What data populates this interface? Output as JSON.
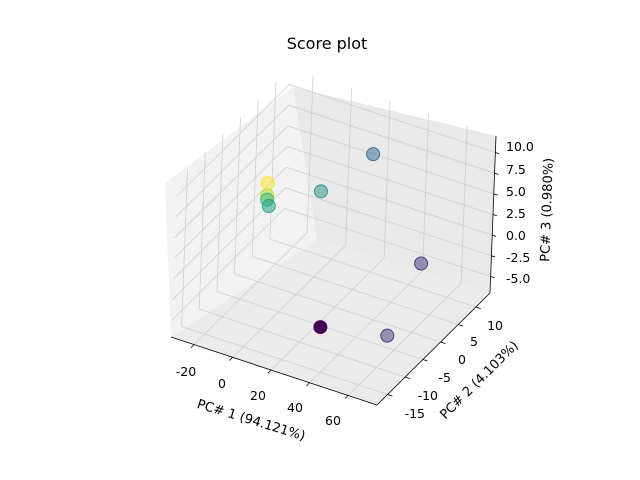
{
  "chart_data": {
    "type": "scatter",
    "projection": "3d",
    "title": "Score plot",
    "xlabel": "PC# 1 (94.121%)",
    "ylabel": "PC# 2 (4.103%)",
    "zlabel": "PC# 3 (0.980%)",
    "xlim": [
      -32,
      75
    ],
    "ylim": [
      -18,
      14
    ],
    "zlim": [
      -7,
      12
    ],
    "xticks": [
      "-20",
      "0",
      "20",
      "40",
      "60"
    ],
    "yticks": [
      "-15",
      "-10",
      "-5",
      "0",
      "5",
      "10"
    ],
    "zticks": [
      "-5.0",
      "-2.5",
      "0.0",
      "2.5",
      "5.0",
      "7.5",
      "10.0"
    ],
    "grid": true,
    "colormap": "viridis",
    "points": [
      {
        "x": 28,
        "y": 5,
        "z": 10.0,
        "color": "#31688e"
      },
      {
        "x": 60,
        "y": 2,
        "z": 0.5,
        "color": "#46327e"
      },
      {
        "x": 58,
        "y": -6,
        "z": -5.0,
        "color": "#46327e"
      },
      {
        "x": 27,
        "y": -8,
        "z": -5.5,
        "color": "#440154"
      },
      {
        "x": 2,
        "y": 5,
        "z": 3.5,
        "color": "#21918c"
      },
      {
        "x": -22,
        "y": 3,
        "z": 3.5,
        "color": "#fde725"
      },
      {
        "x": -22,
        "y": 3,
        "z": 2.0,
        "color": "#b5de2b"
      },
      {
        "x": -22,
        "y": 3,
        "z": 1.5,
        "color": "#35b779"
      },
      {
        "x": -21,
        "y": 3,
        "z": 0.8,
        "color": "#1f9e89"
      }
    ],
    "point_alpha": 0.4
  }
}
